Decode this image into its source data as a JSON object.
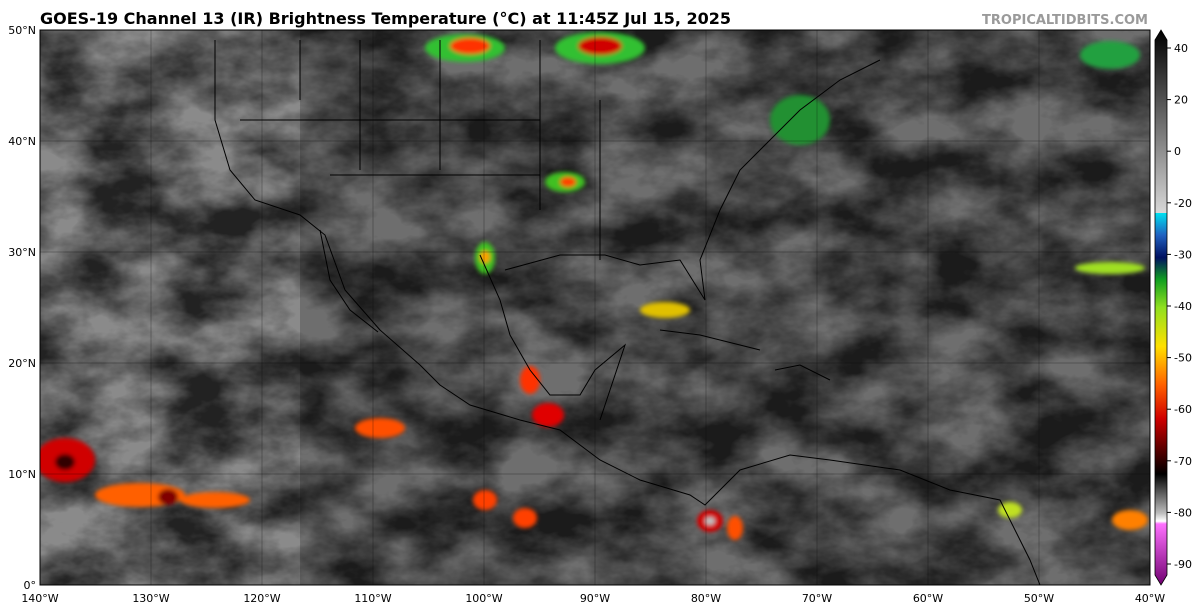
{
  "title": "GOES-19 Channel 13 (IR) Brightness Temperature (°C) at 11:45Z Jul 15, 2025",
  "watermark": "TROPICALTIDBITS.COM",
  "map": {
    "lon_ticks": [
      {
        "value": -140,
        "label": "140°W"
      },
      {
        "value": -130,
        "label": "130°W"
      },
      {
        "value": -120,
        "label": "120°W"
      },
      {
        "value": -110,
        "label": "110°W"
      },
      {
        "value": -100,
        "label": "100°W"
      },
      {
        "value": -90,
        "label": "90°W"
      },
      {
        "value": -80,
        "label": "80°W"
      },
      {
        "value": -70,
        "label": "70°W"
      },
      {
        "value": -60,
        "label": "60°W"
      },
      {
        "value": -50,
        "label": "50°W"
      },
      {
        "value": -40,
        "label": "40°W"
      }
    ],
    "lat_ticks": [
      {
        "value": 0,
        "label": "0°"
      },
      {
        "value": 10,
        "label": "10°N"
      },
      {
        "value": 20,
        "label": "20°N"
      },
      {
        "value": 30,
        "label": "30°N"
      },
      {
        "value": 40,
        "label": "40°N"
      },
      {
        "value": 50,
        "label": "50°N"
      }
    ],
    "lonlim": [
      -140,
      -40
    ],
    "latlim": [
      0,
      50
    ]
  },
  "colorbar": {
    "ticks": [
      40,
      20,
      0,
      -20,
      -30,
      -40,
      -50,
      -60,
      -70,
      -80,
      -90
    ]
  }
}
